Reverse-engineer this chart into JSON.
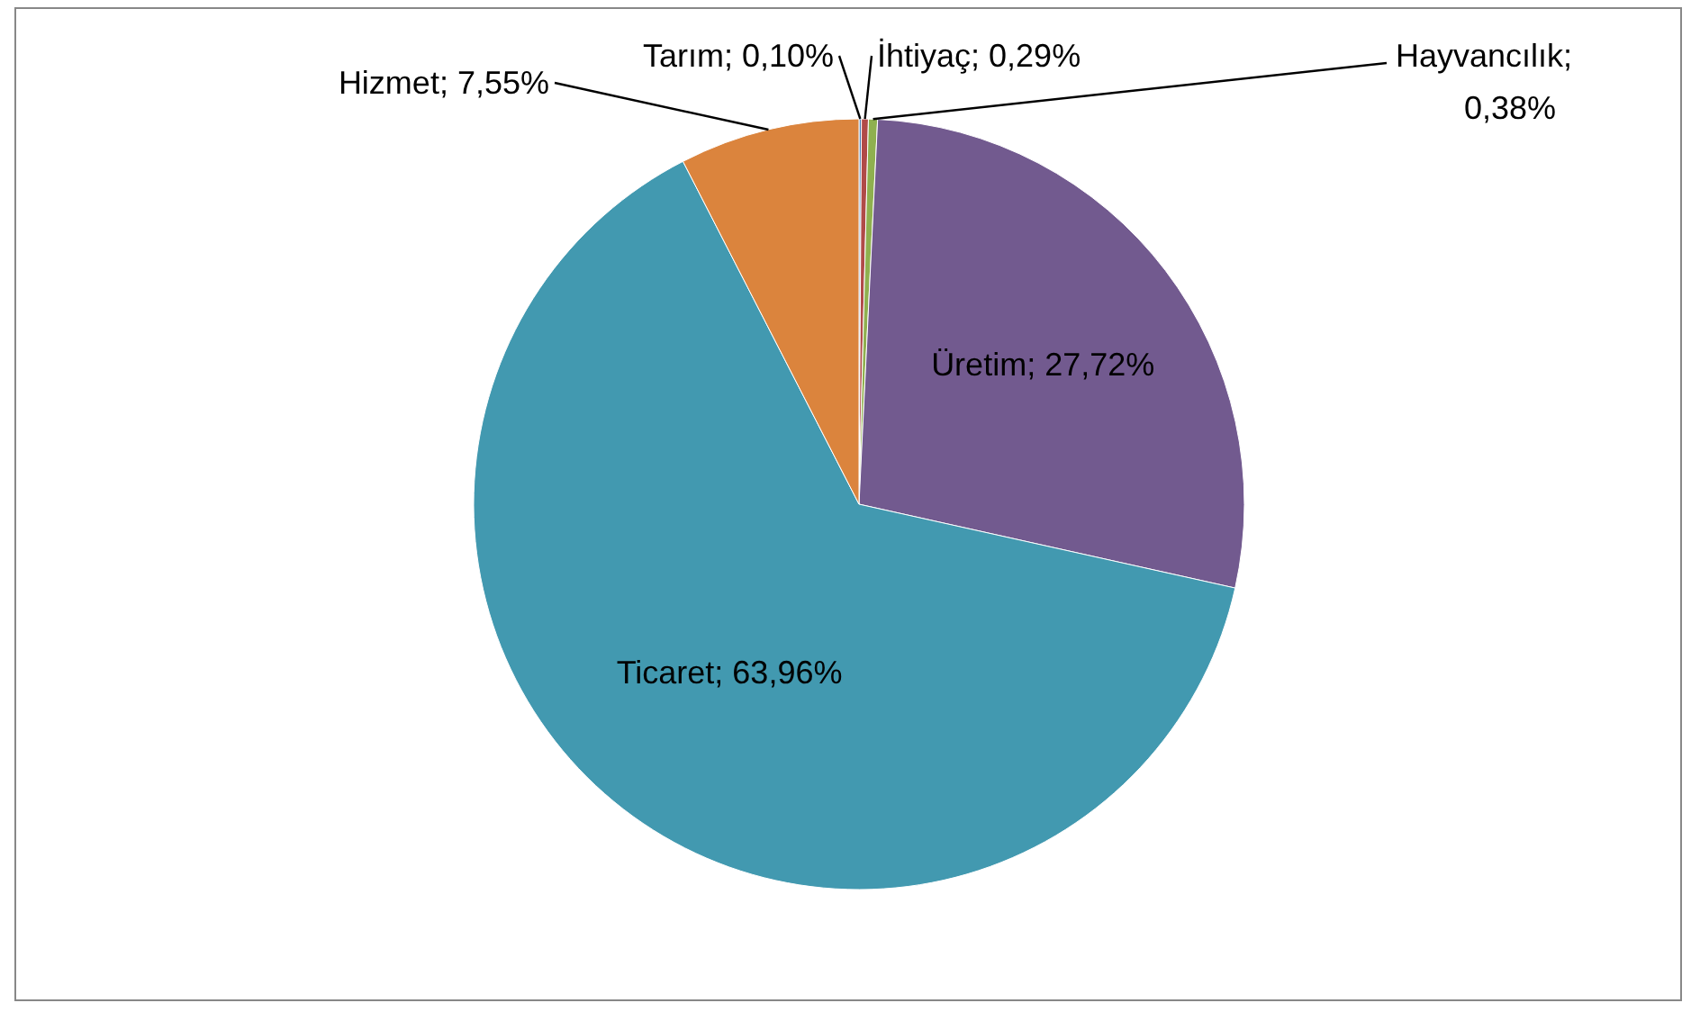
{
  "chart_data": {
    "type": "pie",
    "categories": [
      "Tarım",
      "İhtiyaç",
      "Hayvancılık",
      "Üretim",
      "Ticaret",
      "Hizmet"
    ],
    "values": [
      0.1,
      0.29,
      0.38,
      27.72,
      63.96,
      7.55
    ],
    "colors": [
      "#4a7ab0",
      "#b04a48",
      "#8fb04f",
      "#725a8f",
      "#4299b0",
      "#db843d"
    ],
    "value_labels": [
      "; 0,10%",
      "; 0,29%",
      "; 0,38%",
      "; 27,72%",
      "; 63,96%",
      "; 7,55%"
    ]
  }
}
